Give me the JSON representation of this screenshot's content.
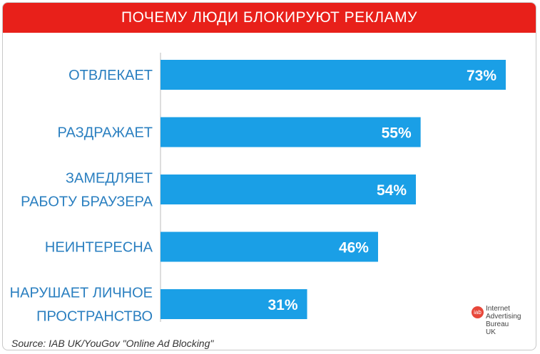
{
  "colors": {
    "title_bg": "#e8201a",
    "bar": "#1a9fe6",
    "category_text": "#2a7fc0",
    "axis": "#bbbbbb"
  },
  "chart_data": {
    "type": "bar",
    "orientation": "horizontal",
    "title": "ПОЧЕМУ ЛЮДИ БЛОКИРУЮТ РЕКЛАМУ",
    "categories": [
      [
        "ОТВЛЕКАЕТ"
      ],
      [
        "РАЗДРАЖАЕТ"
      ],
      [
        "ЗАМЕДЛЯЕТ",
        "РАБОТУ БРАУЗЕРА"
      ],
      [
        "НЕИНТЕРЕСНА"
      ],
      [
        "НАРУШАЕТ ЛИЧНОЕ",
        "ПРОСТРАНСТВО"
      ]
    ],
    "values": [
      73,
      55,
      54,
      46,
      31
    ],
    "value_labels": [
      "73%",
      "55%",
      "54%",
      "46%",
      "31%"
    ],
    "unit": "%",
    "xlim": [
      0,
      100
    ],
    "grid": false
  },
  "source": "Source: IAB UK/YouGov \"Online Ad Blocking\"",
  "logo": {
    "mark": "iab",
    "lines": [
      "Internet",
      "Advertising",
      "Bureau",
      "UK"
    ]
  }
}
